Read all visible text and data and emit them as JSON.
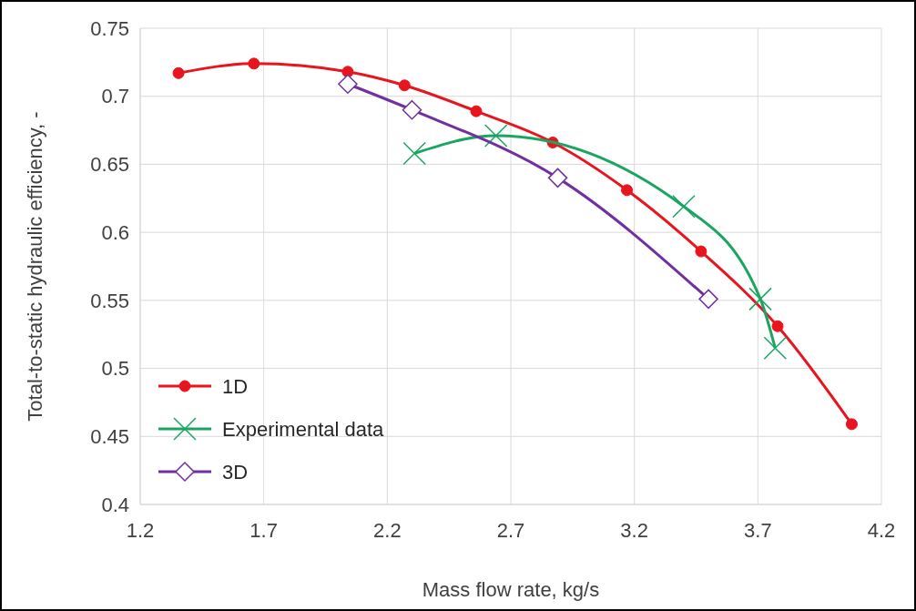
{
  "chart_data": {
    "type": "line",
    "xlabel": "Mass flow rate, kg/s",
    "ylabel": "Total-to-static hydraulic efficiency, -",
    "xlim": [
      1.2,
      4.2
    ],
    "xticks": [
      1.2,
      1.7,
      2.2,
      2.7,
      3.2,
      3.7,
      4.2
    ],
    "ylim": [
      0.4,
      0.75
    ],
    "yticks": [
      0.4,
      0.45,
      0.5,
      0.55,
      0.6,
      0.65,
      0.7,
      0.75
    ],
    "grid": true,
    "legend": "bottom left",
    "series": [
      {
        "name": "1D",
        "color": "#e8141e",
        "marker": "circle",
        "x": [
          1.355,
          1.66,
          2.04,
          2.27,
          2.56,
          2.87,
          3.17,
          3.47,
          3.78,
          4.08
        ],
        "values": [
          0.717,
          0.724,
          0.718,
          0.708,
          0.689,
          0.666,
          0.631,
          0.586,
          0.531,
          0.459
        ]
      },
      {
        "name": "Experimental data",
        "color": "#1aa561",
        "marker": "cross",
        "x": [
          2.31,
          2.64,
          3.4,
          3.71,
          3.77
        ],
        "values": [
          0.658,
          0.671,
          0.619,
          0.551,
          0.515
        ]
      },
      {
        "name": "3D",
        "color": "#7030a0",
        "marker": "diamond",
        "x": [
          2.04,
          2.3,
          2.89,
          3.5
        ],
        "values": [
          0.709,
          0.69,
          0.64,
          0.551
        ]
      }
    ]
  }
}
